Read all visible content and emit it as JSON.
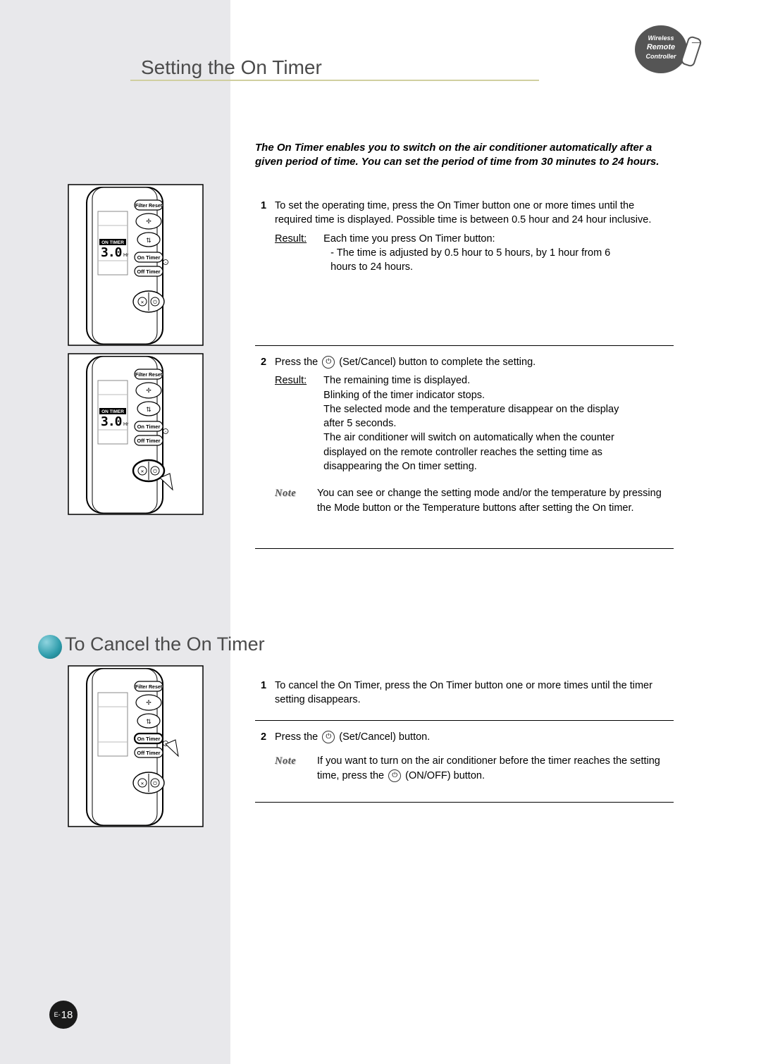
{
  "page": {
    "title": "Setting the On Timer",
    "page_prefix": "E-",
    "page_number": "18"
  },
  "badge": {
    "label": "Wireless Remote Controller"
  },
  "intro": "The On Timer enables you to switch on the air conditioner automatically after a given period of time. You can set the period of time from 30 minutes to 24 hours.",
  "step1": {
    "num": "1",
    "body": "To set the operating time, press the On Timer button one or more times until the required time is displayed. Possible time is between 0.5 hour and 24 hour inclusive.",
    "result_label": "Result:",
    "result_body_a": "Each time you press On Timer button:",
    "result_body_b": "- The time is adjusted by 0.5 hour to 5 hours, by 1 hour from 6 hours to 24 hours."
  },
  "step2": {
    "num": "2",
    "prefix": "Press the ",
    "suffix": " (Set/Cancel) button to complete the setting.",
    "result_label": "Result:",
    "result_body": "The remaining time is displayed.\nBlinking of the timer indicator stops.\nThe selected mode and the temperature disappear on the display after 5 seconds.\nThe air conditioner will switch on automatically when the counter displayed on the remote controller reaches the setting time as disappearing the On timer setting.",
    "note_label": "Note",
    "note_body": "You can see or change the setting mode and/or the temperature by pressing the Mode button or the Temperature buttons after setting the On timer."
  },
  "cancel": {
    "heading": "To Cancel the On Timer",
    "step1_num": "1",
    "step1_body": "To cancel the On Timer, press the On Timer button one or more times until the timer setting disappears.",
    "step2_num": "2",
    "step2_prefix": "Press the ",
    "step2_suffix": " (Set/Cancel) button.",
    "note_label": "Note",
    "note_prefix": "If you want to turn on the air conditioner before the timer reaches the setting time, press the ",
    "note_suffix": " (ON/OFF) button."
  },
  "remote": {
    "btn_filter": "Filter Reset",
    "btn_on": "On Timer",
    "btn_off": "Off Timer",
    "display_badge": "ON  TIMER",
    "display_value": "3.0",
    "display_unit": "Hr"
  }
}
